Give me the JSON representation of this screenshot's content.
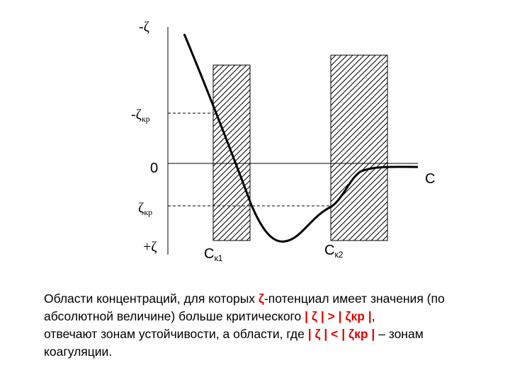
{
  "diagram": {
    "axis_labels": {
      "neg_zeta": "-ζ",
      "neg_zeta_cr_main": "-ζ",
      "neg_zeta_cr_sub": "кр",
      "zero": "0",
      "zeta_cr_main": "ζ",
      "zeta_cr_sub": "кр",
      "pos_zeta": "+ζ",
      "x_axis": "C"
    },
    "concentration_labels": {
      "ck1_main": "С",
      "ck1_sub": "к1",
      "ck2_main": "С",
      "ck2_sub": "к2"
    }
  },
  "caption": {
    "line1_a": "Области концентраций, для которых ",
    "line1_zeta": "ζ",
    "line1_b": "-потенциал имеет значения (по",
    "line2_a": "абсолютной величине) больше критического ",
    "line2_cond": "| ζ | > | ζкр |",
    "line2_b": ",",
    "line3_a": "отвечают зонам устойчивости, а области, где ",
    "line3_cond": "| ζ | < | ζкр |",
    "line3_b": " – зонам",
    "line4": "коагуляции."
  }
}
